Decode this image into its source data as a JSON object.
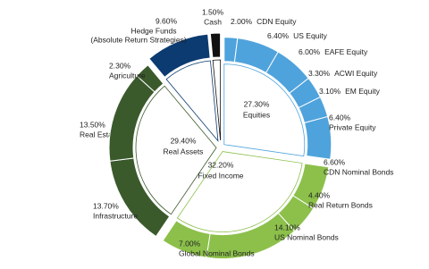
{
  "chart_data": {
    "type": "sunburst",
    "groups": [
      {
        "name": "Equities",
        "value": 27.3,
        "value_label": "27.30%",
        "color": "#4fa3dc",
        "children": [
          {
            "name": "CDN Equity",
            "value": 2.0,
            "value_label": "2.00%"
          },
          {
            "name": "US Equity",
            "value": 6.4,
            "value_label": "6.40%"
          },
          {
            "name": "EAFE Equity",
            "value": 6.0,
            "value_label": "6.00%"
          },
          {
            "name": "ACWI Equity",
            "value": 3.3,
            "value_label": "3.30%"
          },
          {
            "name": "EM Equity",
            "value": 3.1,
            "value_label": "3.10%"
          },
          {
            "name": "Private Equity",
            "value": 6.4,
            "value_label": "6.40%"
          }
        ]
      },
      {
        "name": "Fixed Income",
        "value": 32.2,
        "value_label": "32.20%",
        "color": "#8cc04b",
        "children": [
          {
            "name": "CDN Nominal Bonds",
            "value": 6.6,
            "value_label": "6.60%"
          },
          {
            "name": "Real Return Bonds",
            "value": 4.4,
            "value_label": "4.40%"
          },
          {
            "name": "US Nominal Bonds",
            "value": 14.1,
            "value_label": "14.10%"
          },
          {
            "name": "Global Nominal Bonds",
            "value": 7.0,
            "value_label": "7.00%"
          }
        ]
      },
      {
        "name": "Real Assets",
        "value": 29.4,
        "value_label": "29.40%",
        "color": "#3b5a2c",
        "children": [
          {
            "name": "Real Estate",
            "value": 13.5,
            "value_label": "13.50%"
          },
          {
            "name": "Infrastructure",
            "value": 13.7,
            "value_label": "13.70%"
          },
          {
            "name": "Agriculture",
            "value": 2.3,
            "value_label": "2.30%"
          }
        ]
      },
      {
        "color": "#0b3b70",
        "children": [
          {
            "name": "Hedge Funds",
            "note": "(Absolute Return Strategies)",
            "value": 9.6,
            "value_label": "9.60%"
          }
        ]
      },
      {
        "color": "#111111",
        "children": [
          {
            "name": "Cash",
            "value": 1.5,
            "value_label": "1.50%"
          }
        ]
      }
    ]
  }
}
